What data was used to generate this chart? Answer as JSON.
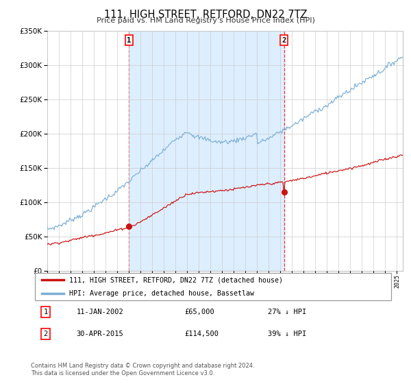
{
  "title": "111, HIGH STREET, RETFORD, DN22 7TZ",
  "subtitle": "Price paid vs. HM Land Registry's House Price Index (HPI)",
  "ylim": [
    0,
    350000
  ],
  "yticks": [
    0,
    50000,
    100000,
    150000,
    200000,
    250000,
    300000,
    350000
  ],
  "ytick_labels": [
    "£0",
    "£50K",
    "£100K",
    "£150K",
    "£200K",
    "£250K",
    "£300K",
    "£350K"
  ],
  "hpi_color": "#7bafd4",
  "price_color": "#cc1111",
  "shade_color": "#ddeeff",
  "marker1_year": 2002.04,
  "marker2_year": 2015.33,
  "marker1_label": "11-JAN-2002",
  "marker1_price": "£65,000",
  "marker1_pct": "27% ↓ HPI",
  "marker2_label": "30-APR-2015",
  "marker2_price": "£114,500",
  "marker2_pct": "39% ↓ HPI",
  "legend_line1": "111, HIGH STREET, RETFORD, DN22 7TZ (detached house)",
  "legend_line2": "HPI: Average price, detached house, Bassetlaw",
  "footer": "Contains HM Land Registry data © Crown copyright and database right 2024.\nThis data is licensed under the Open Government Licence v3.0.",
  "background_color": "#ffffff",
  "grid_color": "#cccccc",
  "year_start": 1995,
  "year_end": 2025
}
